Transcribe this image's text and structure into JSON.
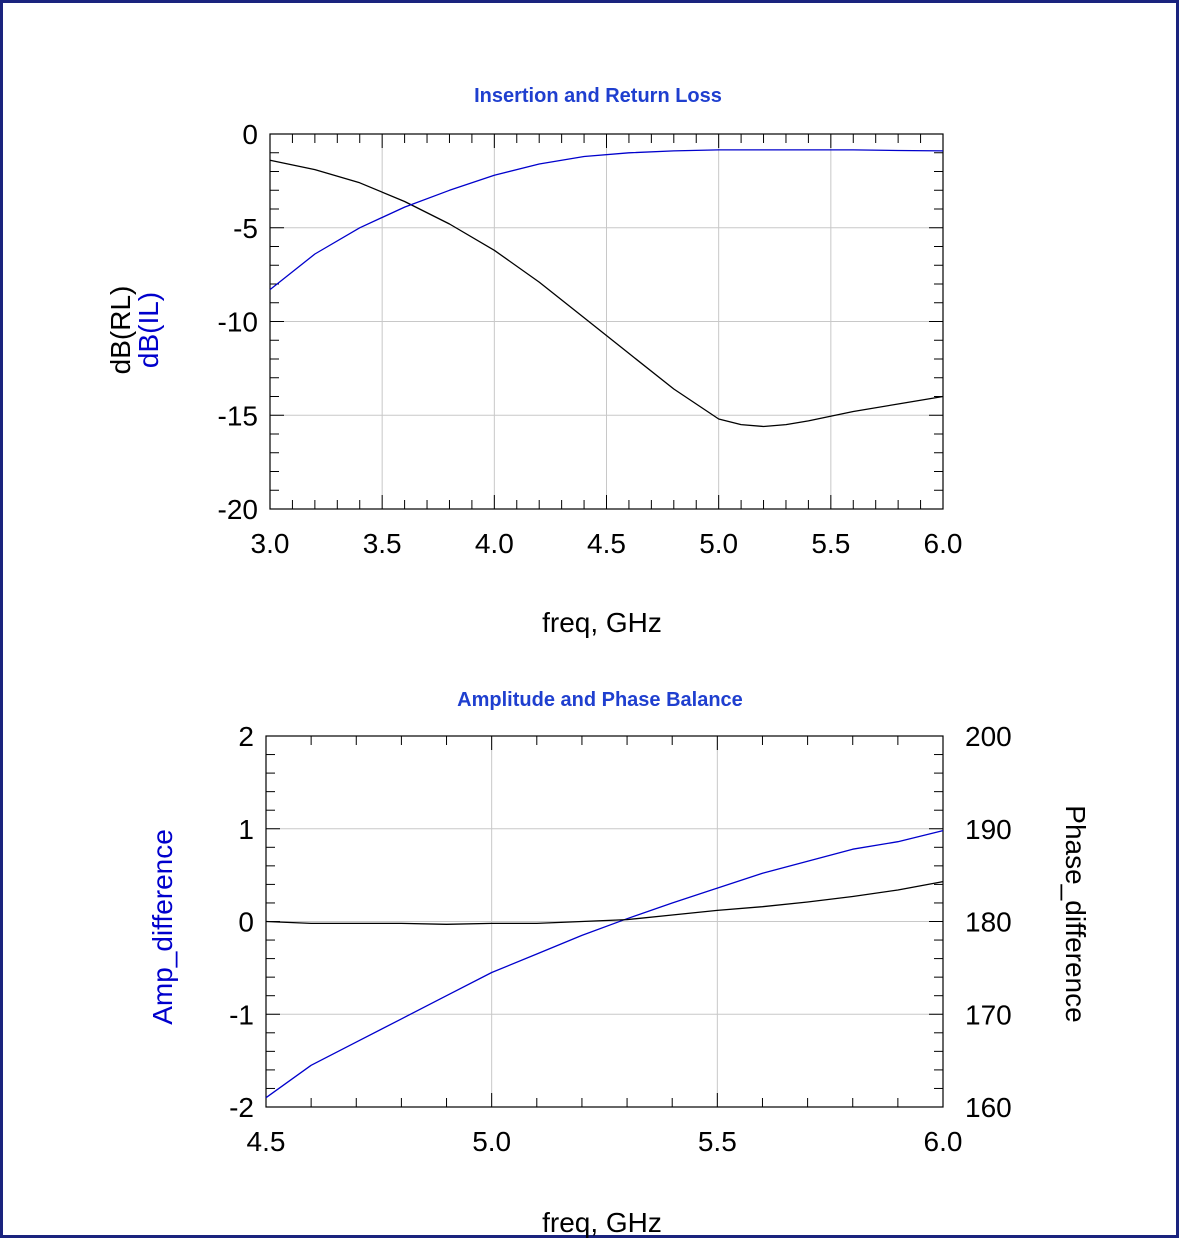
{
  "chart_data": [
    {
      "type": "line",
      "title": "Insertion and Return Loss",
      "xlabel": "freq, GHz",
      "ylabel_lines": [
        "dB(RL)",
        "dB(IL)"
      ],
      "xlim": [
        3.0,
        6.0
      ],
      "ylim": [
        -20,
        0
      ],
      "x_ticks": [
        "3.0",
        "3.5",
        "4.0",
        "4.5",
        "5.0",
        "5.5",
        "6.0"
      ],
      "y_ticks": [
        "0",
        "-5",
        "-10",
        "-15",
        "-20"
      ],
      "grid": true,
      "series": [
        {
          "name": "dB(RL)",
          "color": "#000000",
          "x": [
            3.0,
            3.2,
            3.4,
            3.6,
            3.8,
            4.0,
            4.2,
            4.4,
            4.6,
            4.8,
            5.0,
            5.1,
            5.2,
            5.3,
            5.4,
            5.6,
            5.8,
            6.0
          ],
          "y": [
            -1.4,
            -1.9,
            -2.6,
            -3.6,
            -4.8,
            -6.2,
            -7.9,
            -9.8,
            -11.7,
            -13.6,
            -15.2,
            -15.5,
            -15.6,
            -15.5,
            -15.3,
            -14.8,
            -14.4,
            -14.0
          ]
        },
        {
          "name": "dB(IL)",
          "color": "#0000cc",
          "x": [
            3.0,
            3.2,
            3.4,
            3.6,
            3.8,
            4.0,
            4.2,
            4.4,
            4.6,
            4.8,
            5.0,
            5.2,
            5.4,
            5.6,
            5.8,
            6.0
          ],
          "y": [
            -8.3,
            -6.4,
            -5.0,
            -3.9,
            -3.0,
            -2.2,
            -1.6,
            -1.2,
            -1.0,
            -0.9,
            -0.85,
            -0.85,
            -0.85,
            -0.85,
            -0.88,
            -0.9
          ]
        }
      ]
    },
    {
      "type": "line",
      "title": "Amplitude and Phase Balance",
      "xlabel": "freq, GHz",
      "ylabel": "Amp_difference",
      "y2label": "Phase_difference",
      "xlim": [
        4.5,
        6.0
      ],
      "ylim": [
        -2,
        2
      ],
      "y2lim": [
        160,
        200
      ],
      "x_ticks": [
        "4.5",
        "5.0",
        "5.5",
        "6.0"
      ],
      "y_ticks": [
        "2",
        "1",
        "0",
        "-1",
        "-2"
      ],
      "y2_ticks": [
        "200",
        "190",
        "180",
        "170",
        "160"
      ],
      "grid": true,
      "series": [
        {
          "name": "Amp_difference",
          "axis": "left",
          "color": "#0000cc",
          "x": [
            4.5,
            4.6,
            4.7,
            4.8,
            4.9,
            5.0,
            5.1,
            5.2,
            5.3,
            5.4,
            5.5,
            5.6,
            5.7,
            5.8,
            5.9,
            6.0
          ],
          "y": [
            -1.9,
            -1.55,
            -1.3,
            -1.05,
            -0.8,
            -0.55,
            -0.35,
            -0.15,
            0.03,
            0.2,
            0.36,
            0.52,
            0.65,
            0.78,
            0.86,
            0.98
          ]
        },
        {
          "name": "Phase_difference",
          "axis": "right",
          "color": "#000000",
          "x": [
            4.5,
            4.6,
            4.7,
            4.8,
            4.9,
            5.0,
            5.1,
            5.2,
            5.3,
            5.4,
            5.5,
            5.6,
            5.7,
            5.8,
            5.9,
            6.0
          ],
          "y": [
            180.0,
            179.8,
            179.8,
            179.8,
            179.7,
            179.8,
            179.8,
            180.0,
            180.2,
            180.7,
            181.2,
            181.6,
            182.1,
            182.7,
            183.4,
            184.3
          ]
        }
      ]
    }
  ]
}
